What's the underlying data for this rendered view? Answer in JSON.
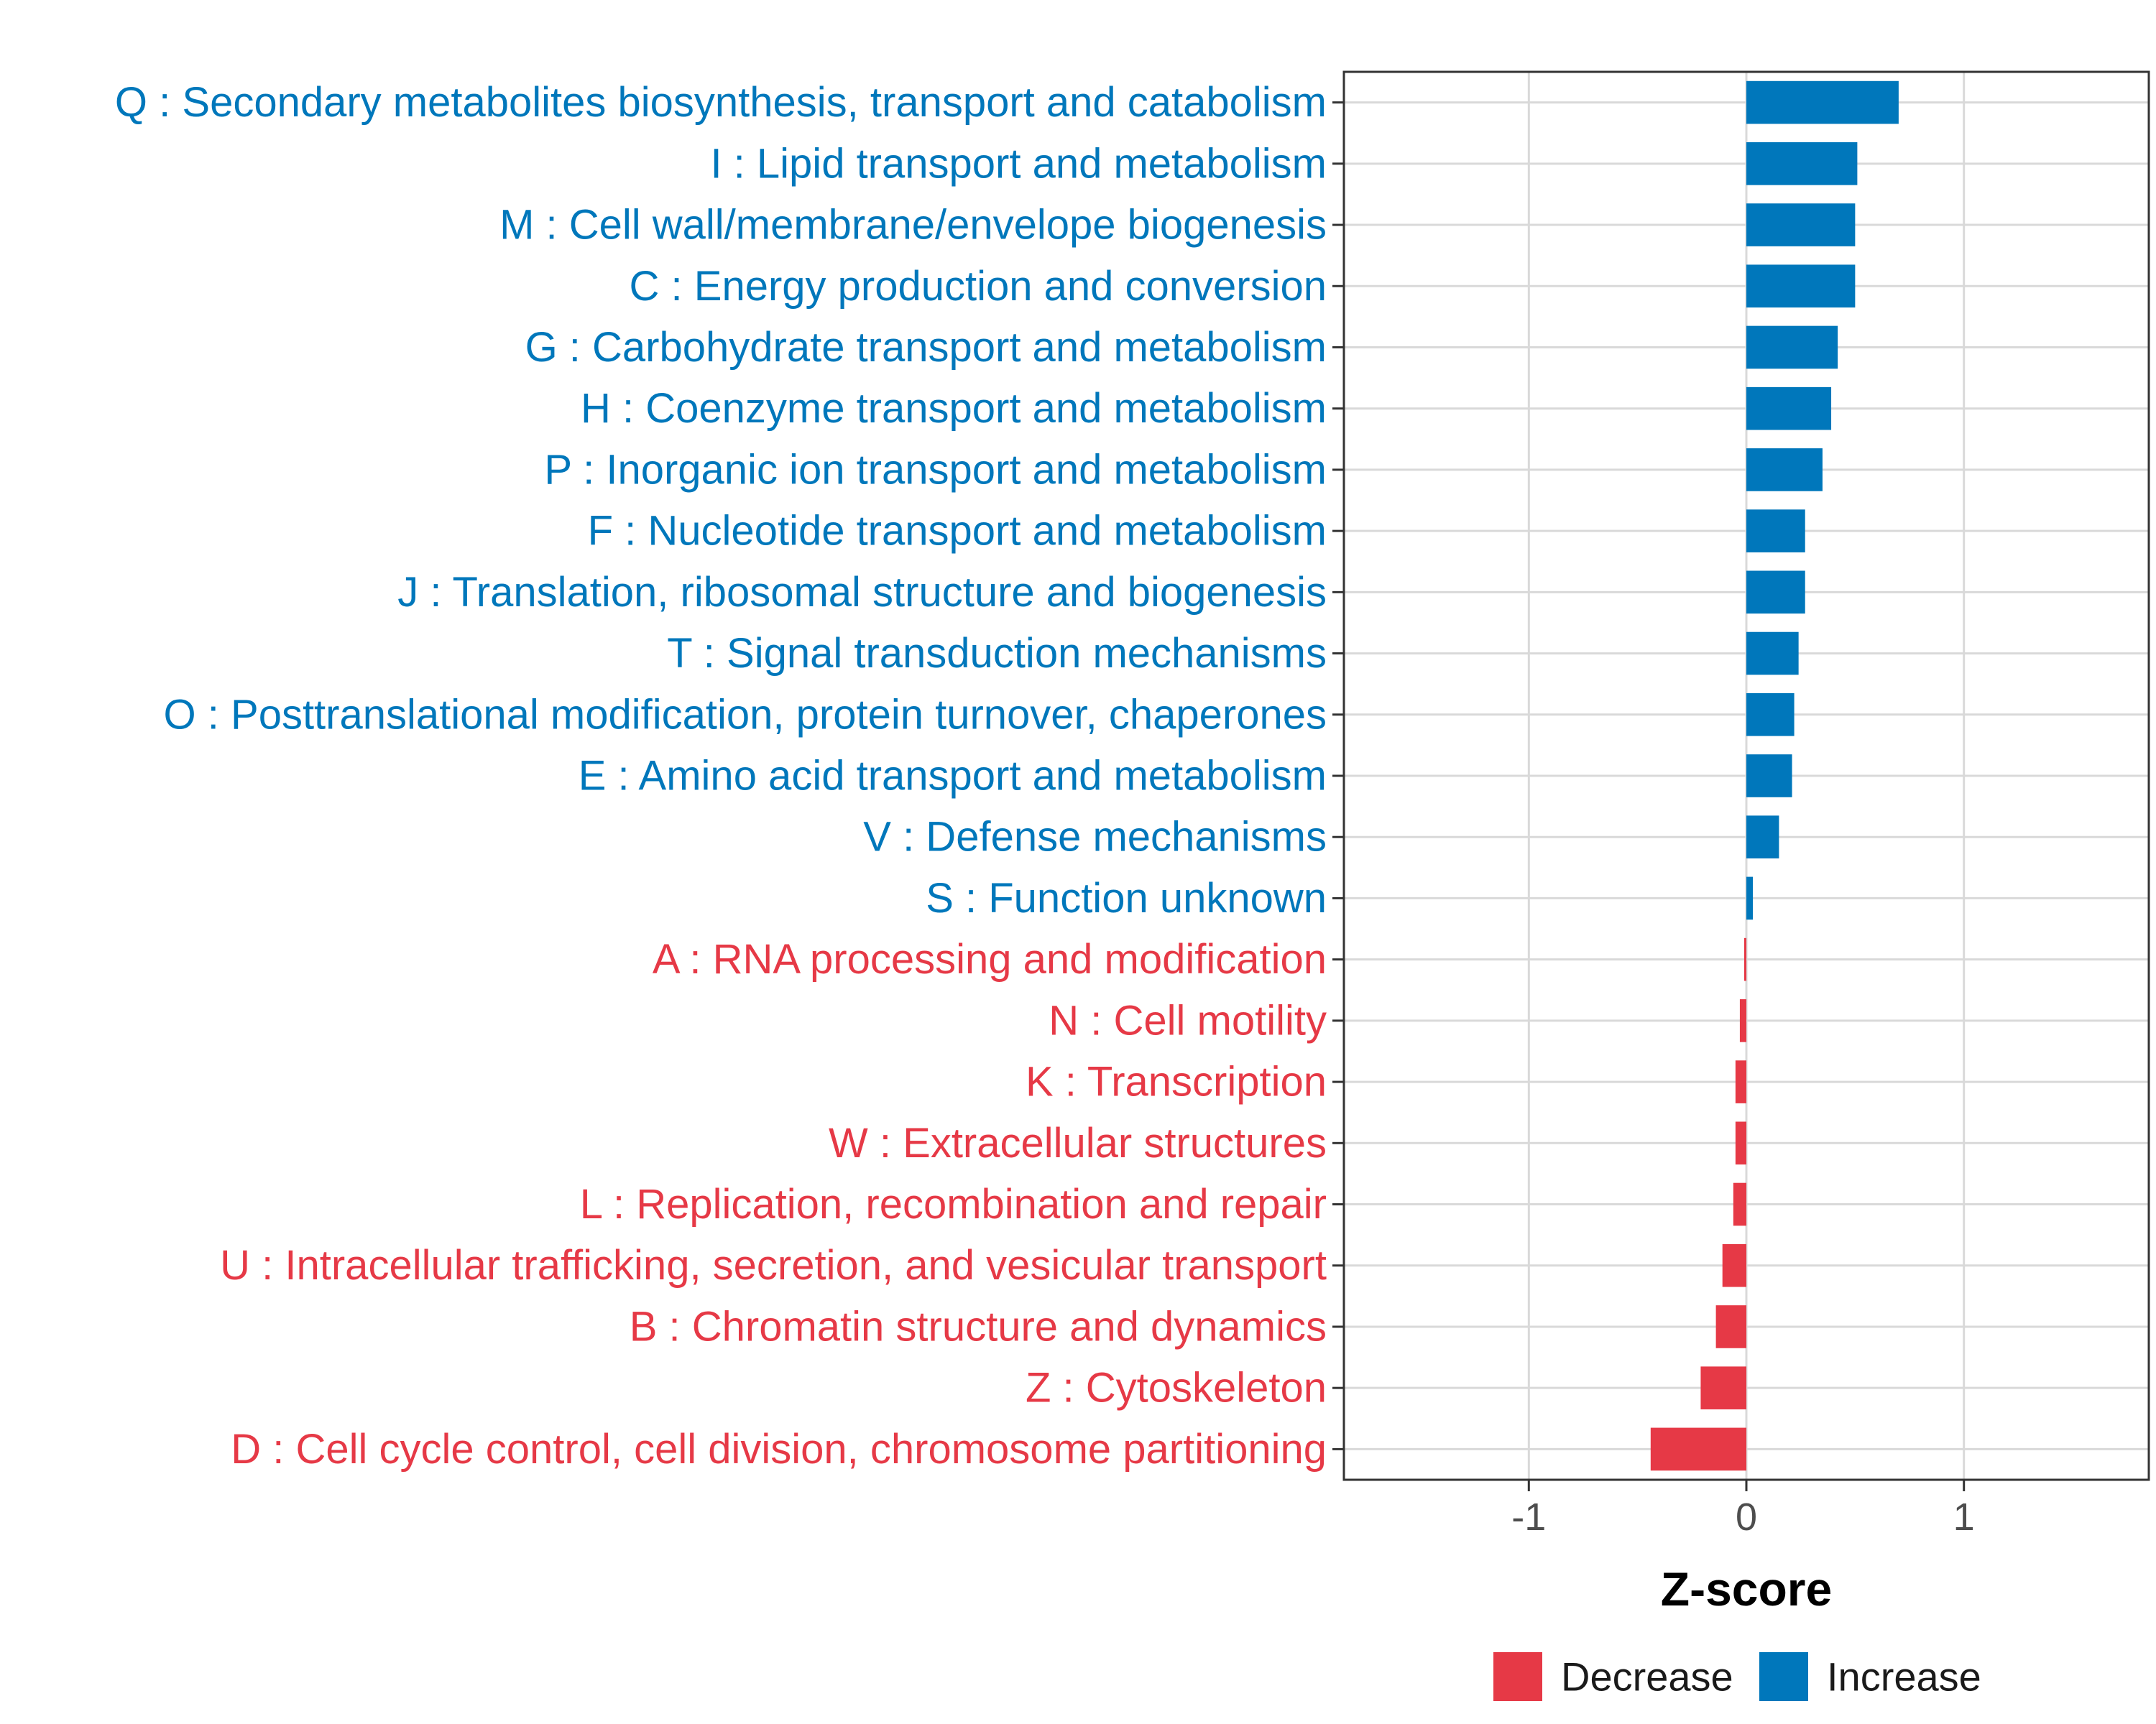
{
  "chart_data": {
    "type": "bar",
    "orientation": "horizontal",
    "title": "",
    "xlabel": "Z-score",
    "ylabel": "",
    "xlim": [
      -1.85,
      1.85
    ],
    "xticks": [
      -1,
      0,
      1
    ],
    "xtick_labels": [
      "-1",
      "0",
      "1"
    ],
    "grid": true,
    "legend_position": "bottom",
    "legend": [
      {
        "key": "decrease",
        "label": "Decrease",
        "color": "#E63946"
      },
      {
        "key": "increase",
        "label": "Increase",
        "color": "#0077BB"
      }
    ],
    "categories": [
      {
        "label": "Q : Secondary metabolites biosynthesis, transport and catabolism",
        "value": 0.7,
        "group": "increase"
      },
      {
        "label": "I : Lipid transport and metabolism",
        "value": 0.51,
        "group": "increase"
      },
      {
        "label": "M : Cell wall/membrane/envelope biogenesis",
        "value": 0.5,
        "group": "increase"
      },
      {
        "label": "C : Energy production and conversion",
        "value": 0.5,
        "group": "increase"
      },
      {
        "label": "G : Carbohydrate transport and metabolism",
        "value": 0.42,
        "group": "increase"
      },
      {
        "label": "H : Coenzyme transport and metabolism",
        "value": 0.39,
        "group": "increase"
      },
      {
        "label": "P : Inorganic ion transport and metabolism",
        "value": 0.35,
        "group": "increase"
      },
      {
        "label": "F : Nucleotide transport and metabolism",
        "value": 0.27,
        "group": "increase"
      },
      {
        "label": "J : Translation, ribosomal structure and biogenesis",
        "value": 0.27,
        "group": "increase"
      },
      {
        "label": "T : Signal transduction mechanisms",
        "value": 0.24,
        "group": "increase"
      },
      {
        "label": "O : Posttranslational modification, protein turnover, chaperones",
        "value": 0.22,
        "group": "increase"
      },
      {
        "label": "E : Amino acid transport and metabolism",
        "value": 0.21,
        "group": "increase"
      },
      {
        "label": "V : Defense mechanisms",
        "value": 0.15,
        "group": "increase"
      },
      {
        "label": "S : Function unknown",
        "value": 0.03,
        "group": "increase"
      },
      {
        "label": "A : RNA processing and modification",
        "value": -0.01,
        "group": "decrease"
      },
      {
        "label": "N : Cell motility",
        "value": -0.03,
        "group": "decrease"
      },
      {
        "label": "K : Transcription",
        "value": -0.05,
        "group": "decrease"
      },
      {
        "label": "W : Extracellular structures",
        "value": -0.05,
        "group": "decrease"
      },
      {
        "label": "L : Replication, recombination and repair",
        "value": -0.06,
        "group": "decrease"
      },
      {
        "label": "U : Intracellular trafficking, secretion, and vesicular transport",
        "value": -0.11,
        "group": "decrease"
      },
      {
        "label": "B : Chromatin structure and dynamics",
        "value": -0.14,
        "group": "decrease"
      },
      {
        "label": "Z : Cytoskeleton",
        "value": -0.21,
        "group": "decrease"
      },
      {
        "label": "D : Cell cycle control, cell division, chromosome partitioning",
        "value": -0.44,
        "group": "decrease"
      }
    ]
  }
}
